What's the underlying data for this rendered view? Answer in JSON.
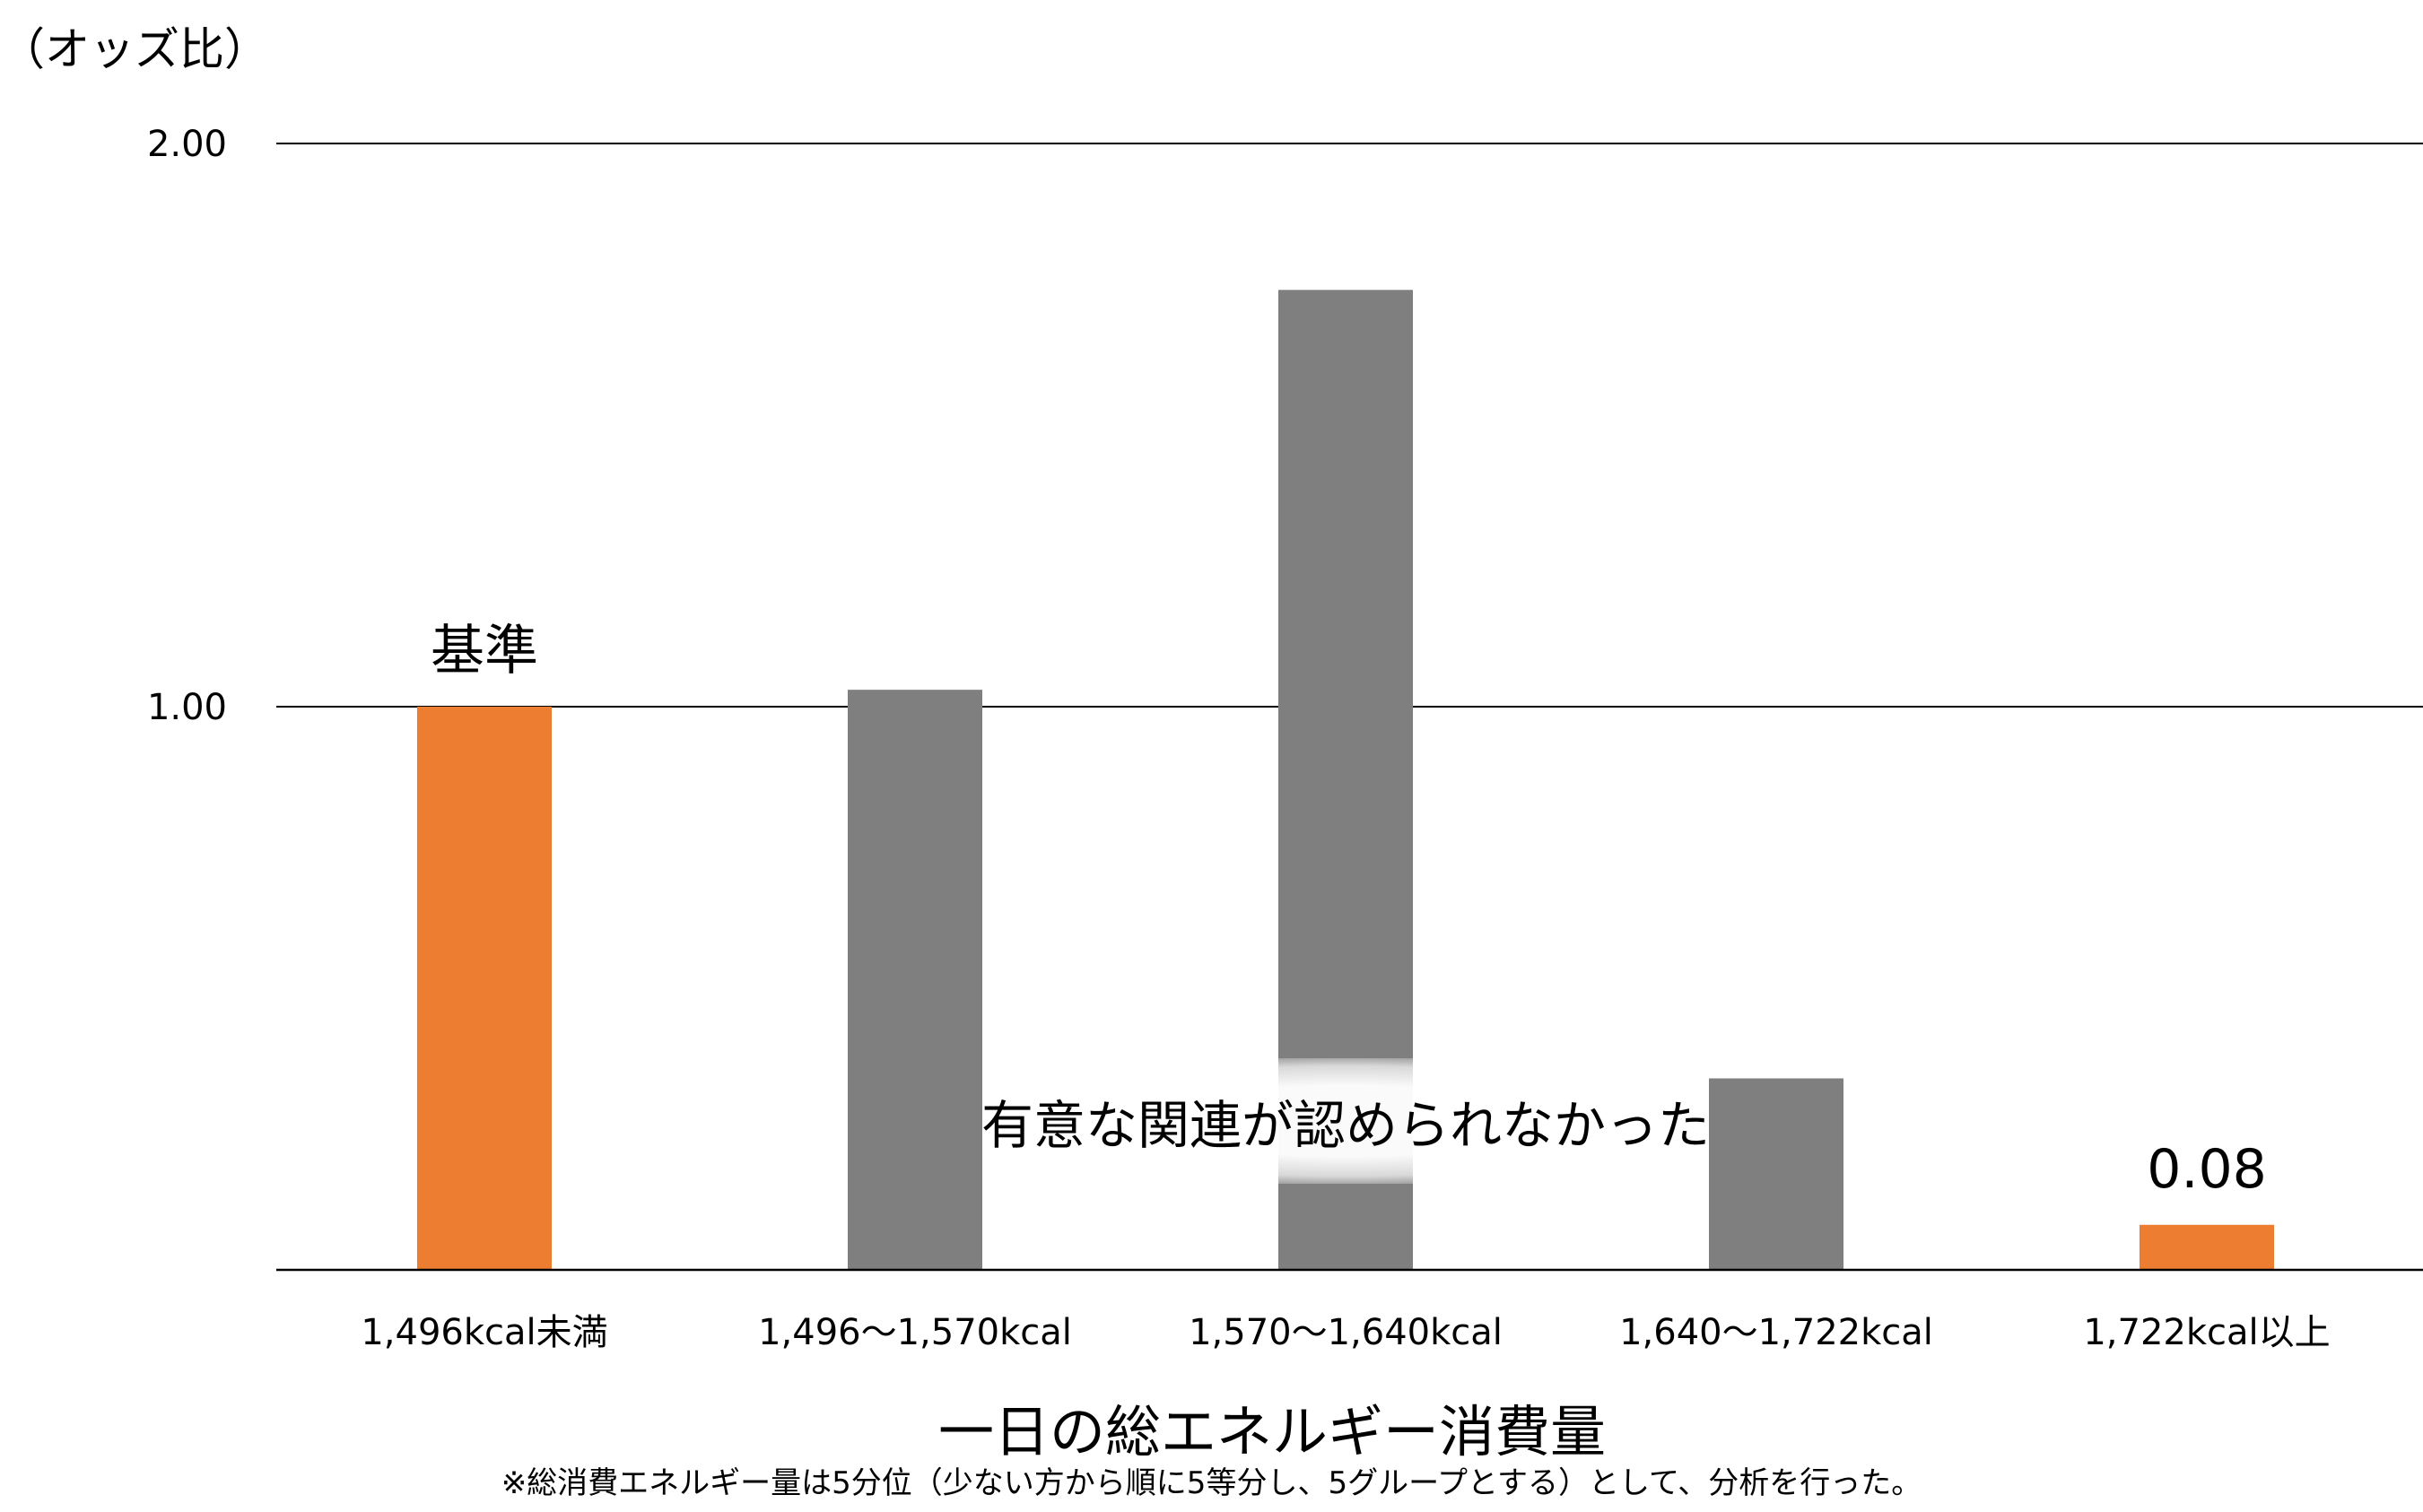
{
  "chart_data": {
    "type": "bar",
    "ylabel": "（オッズ比）",
    "xlabel": "一日の総エネルギー消費量",
    "note": "※総消費エネルギー量は5分位（少ない方から順に5等分し、5グループとする）として、分析を行った。",
    "ylim": [
      0,
      2
    ],
    "yticks": [
      "1.00",
      "2.00"
    ],
    "ytick_values": [
      1,
      2
    ],
    "grid": true,
    "categories": [
      "1,496kcal未満",
      "1,496〜1,570kcal",
      "1,570〜1,640kcal",
      "1,640〜1,722kcal",
      "1,722kcal以上"
    ],
    "values": [
      1.0,
      1.03,
      1.74,
      0.34,
      0.08
    ],
    "bar_colors": [
      "#ED7D31",
      "#7F7F7F",
      "#7F7F7F",
      "#7F7F7F",
      "#ED7D31"
    ],
    "data_labels": [
      "基準",
      "",
      "",
      "",
      "0.08"
    ],
    "annotation": "有意な関連が認められなかった"
  }
}
